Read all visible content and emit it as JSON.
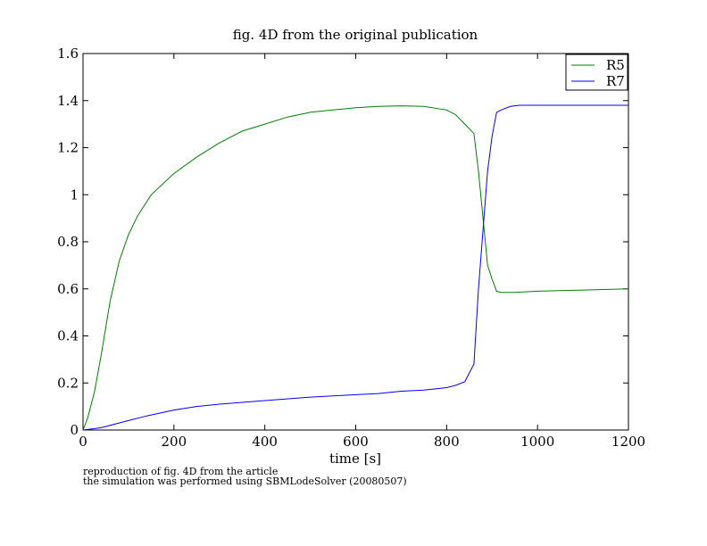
{
  "chart_data": {
    "type": "line",
    "title": "fig. 4D from the original publication",
    "xlabel": "time [s]",
    "ylabel": "",
    "xlim": [
      0,
      1200
    ],
    "ylim": [
      0,
      1.6
    ],
    "x_ticks": [
      "0",
      "200",
      "400",
      "600",
      "800",
      "1000",
      "1200"
    ],
    "y_ticks": [
      "0",
      "0.2",
      "0.4",
      "0.6",
      "0.8",
      "1",
      "1.2",
      "1.4",
      "1.6"
    ],
    "grid": false,
    "legend": "top-right",
    "series": [
      {
        "name": "R5",
        "color": "#008000",
        "x": [
          0,
          10,
          25,
          40,
          60,
          80,
          100,
          120,
          150,
          200,
          250,
          300,
          350,
          400,
          450,
          500,
          550,
          600,
          650,
          700,
          750,
          800,
          820,
          840,
          860,
          870,
          880,
          890,
          900,
          910,
          920,
          950,
          1000,
          1100,
          1200
        ],
        "y": [
          0,
          0.05,
          0.16,
          0.32,
          0.55,
          0.72,
          0.83,
          0.91,
          1.0,
          1.09,
          1.16,
          1.22,
          1.27,
          1.3,
          1.33,
          1.35,
          1.36,
          1.37,
          1.375,
          1.378,
          1.375,
          1.36,
          1.34,
          1.3,
          1.26,
          1.1,
          0.9,
          0.7,
          0.64,
          0.59,
          0.585,
          0.585,
          0.59,
          0.595,
          0.6
        ]
      },
      {
        "name": "R7",
        "color": "#0000ff",
        "x": [
          0,
          20,
          40,
          70,
          100,
          140,
          200,
          250,
          300,
          400,
          500,
          600,
          650,
          700,
          750,
          800,
          820,
          840,
          860,
          870,
          880,
          890,
          900,
          910,
          920,
          940,
          960,
          1000,
          1100,
          1200
        ],
        "y": [
          0,
          0.005,
          0.01,
          0.025,
          0.04,
          0.06,
          0.085,
          0.1,
          0.11,
          0.125,
          0.14,
          0.15,
          0.155,
          0.165,
          0.17,
          0.18,
          0.19,
          0.205,
          0.28,
          0.6,
          0.85,
          1.1,
          1.25,
          1.35,
          1.36,
          1.375,
          1.38,
          1.38,
          1.38,
          1.38
        ]
      }
    ]
  },
  "caption": {
    "line1": "reproduction of fig. 4D from the article",
    "line2": "the simulation was performed using SBMLodeSolver (20080507)"
  }
}
